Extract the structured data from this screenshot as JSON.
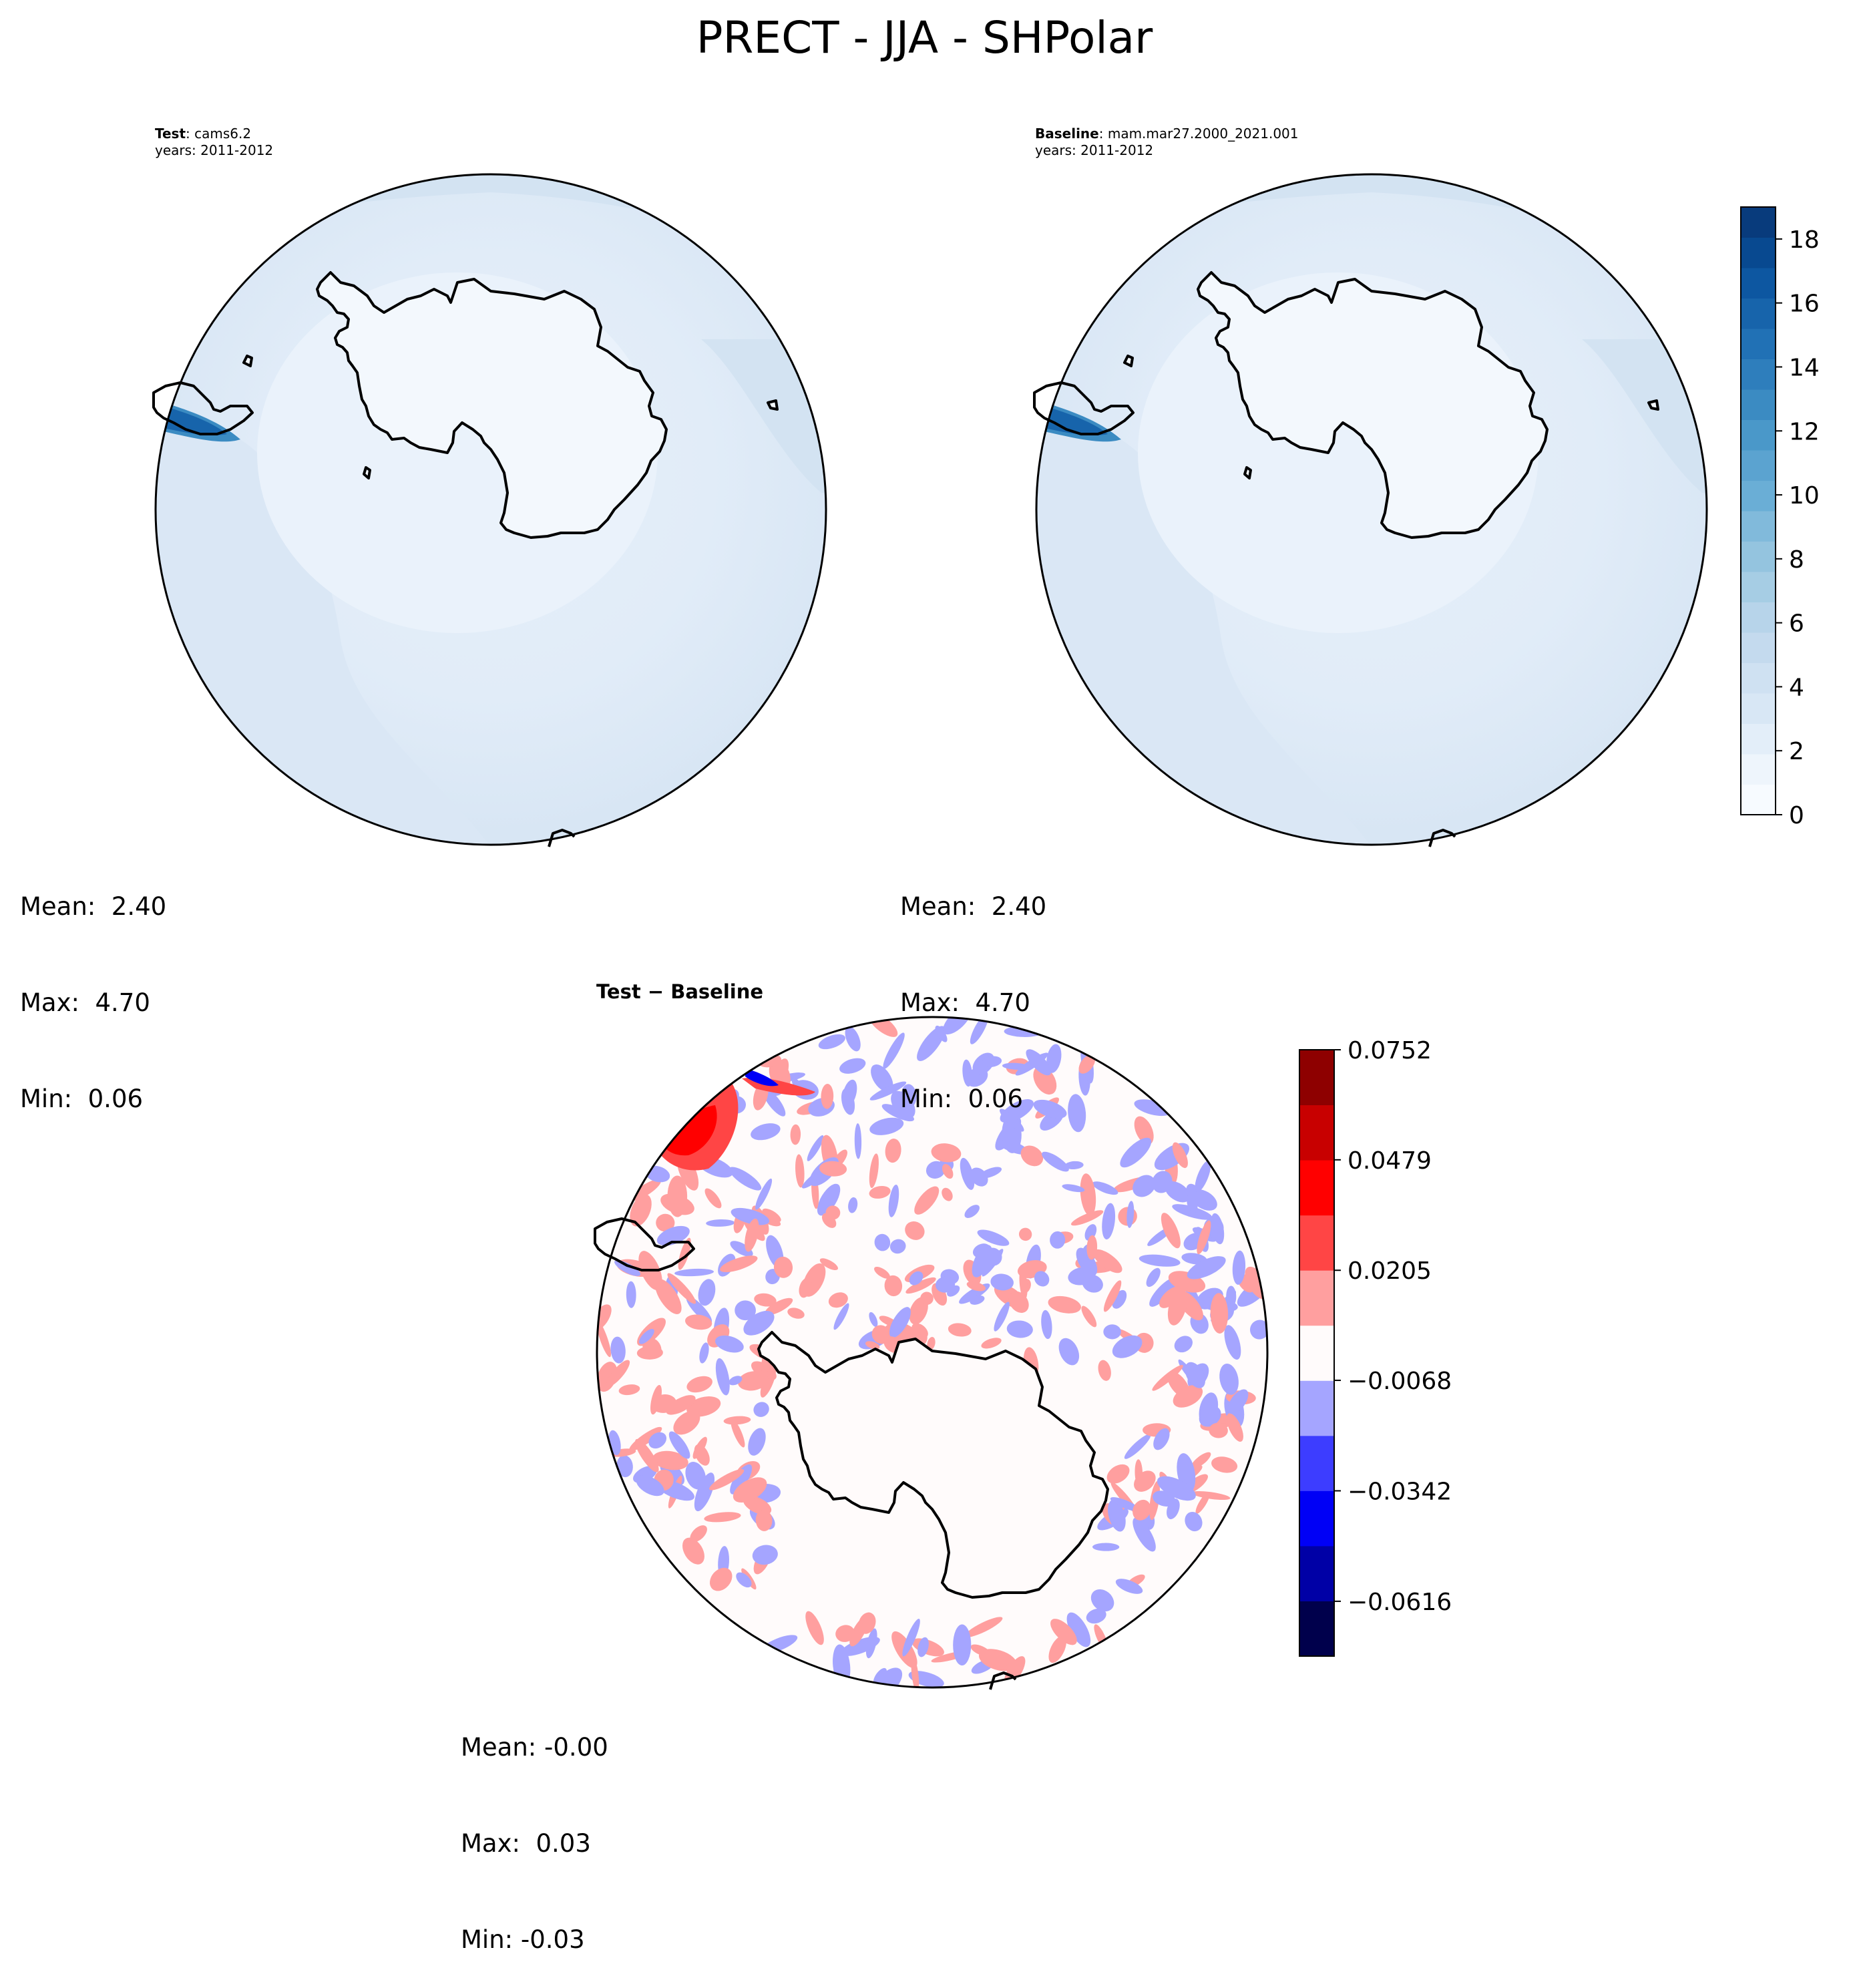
{
  "figure": {
    "title": "PRECT - JJA - SHPolar"
  },
  "panels": {
    "test": {
      "label_bold": "Test",
      "label_rest": ": cams6.2",
      "years": "years: 2011-2012",
      "stats": {
        "mean": "Mean:  2.40",
        "max": "Max:  4.70",
        "min": "Min:  0.06"
      }
    },
    "baseline": {
      "label_bold": "Baseline",
      "label_rest": ": mam.mar27.2000_2021.001",
      "years": "years: 2011-2012",
      "stats": {
        "mean": "Mean:  2.40",
        "max": "Max:  4.70",
        "min": "Min:  0.06"
      }
    },
    "diff": {
      "title": "Test − Baseline",
      "stats": {
        "mean": "Mean: -0.00",
        "max": "Max:  0.03",
        "min": "Min: -0.03"
      }
    }
  },
  "chart_data": [
    {
      "type": "heatmap",
      "name": "test-map",
      "title": "Test: cams6.2 (years: 2011-2012)",
      "projection": "south-polar-stereographic",
      "variable": "PRECT",
      "season": "JJA",
      "stats": {
        "mean": 2.4,
        "max": 4.7,
        "min": 0.06
      }
    },
    {
      "type": "heatmap",
      "name": "baseline-map",
      "title": "Baseline: mam.mar27.2000_2021.001 (years: 2011-2012)",
      "projection": "south-polar-stereographic",
      "variable": "PRECT",
      "season": "JJA",
      "stats": {
        "mean": 2.4,
        "max": 4.7,
        "min": 0.06
      }
    },
    {
      "type": "heatmap",
      "name": "difference-map",
      "title": "Test − Baseline",
      "projection": "south-polar-stereographic",
      "stats": {
        "mean": -0.0,
        "max": 0.03,
        "min": -0.03
      }
    }
  ],
  "colorbars": {
    "main": {
      "range": [
        0,
        19
      ],
      "levels": 20,
      "ticks": [
        0,
        2,
        4,
        6,
        8,
        10,
        12,
        14,
        16,
        18
      ],
      "tick_labels": [
        "0",
        "2",
        "4",
        "6",
        "8",
        "10",
        "12",
        "14",
        "16",
        "18"
      ],
      "colors": [
        "#f7fbff",
        "#eef5fc",
        "#e3eef9",
        "#d8e7f5",
        "#cfe1f2",
        "#c4daee",
        "#b7d4ea",
        "#a6cde4",
        "#94c4df",
        "#81badb",
        "#6aaed6",
        "#5ba3d0",
        "#4a98c9",
        "#3b8bc2",
        "#2e7ebc",
        "#2171b5",
        "#1764ab",
        "#0d57a1",
        "#084990",
        "#083b7c"
      ]
    },
    "diff": {
      "range": [
        -0.0752,
        0.0752
      ],
      "levels": 11,
      "ticks": [
        -0.0616,
        -0.0342,
        -0.0068,
        0.0205,
        0.0479,
        0.0752
      ],
      "tick_labels": [
        "−0.0616",
        "−0.0342",
        "−0.0068",
        "0.0205",
        "0.0479",
        "0.0752"
      ],
      "colors": [
        "#00004c",
        "#0000a6",
        "#0000f6",
        "#3d3dff",
        "#a5a5ff",
        "#fffbfb",
        "#ff9f9f",
        "#ff4545",
        "#ff0000",
        "#c80000",
        "#8e0000"
      ]
    }
  },
  "colors": {
    "ocean_fill_main": "#dbe8f5",
    "ocean_light_main": "#e6f0fa",
    "land_fill": "#f3f8fd",
    "diff_positive": "#ff9f9f",
    "diff_negative": "#a5a5ff",
    "diff_neutral": "#fffbfb"
  }
}
